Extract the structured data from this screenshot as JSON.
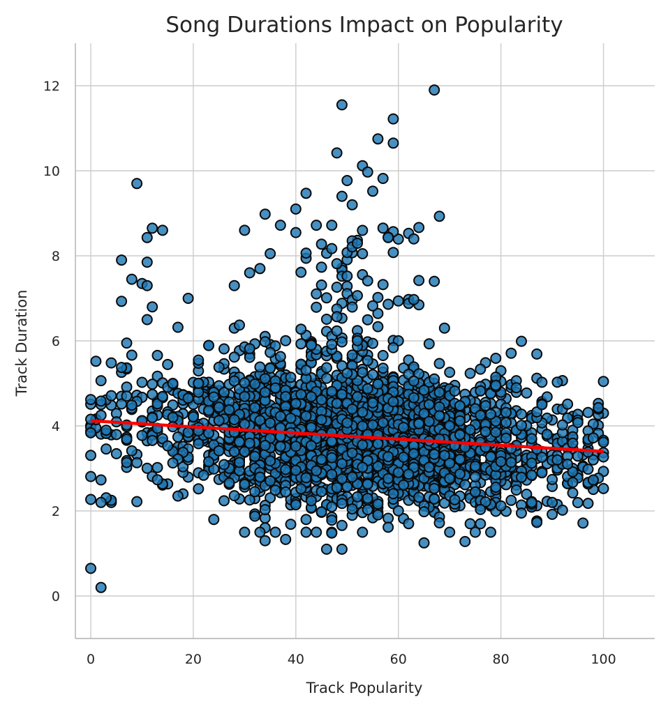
{
  "chart_data": {
    "type": "scatter",
    "title": "Song Durations Impact on Popularity",
    "xlabel": "Track Popularity",
    "ylabel": "Track Duration",
    "xlim": [
      -3,
      110
    ],
    "ylim": [
      -1,
      13
    ],
    "xticks": [
      0,
      20,
      40,
      60,
      80,
      100
    ],
    "yticks": [
      0,
      2,
      4,
      6,
      8,
      10,
      12
    ],
    "grid": true,
    "colors": {
      "points": "#1f77b4",
      "point_edge": "#0a0a0a",
      "fit_line": "#ff0000",
      "grid": "#cccccc"
    },
    "fit_line": {
      "x": [
        0,
        100
      ],
      "y": [
        4.12,
        3.4
      ]
    },
    "outliers": [
      [
        0,
        0.65
      ],
      [
        2,
        0.2
      ],
      [
        9,
        9.7
      ],
      [
        67,
        11.9
      ],
      [
        49,
        11.55
      ],
      [
        59,
        11.22
      ],
      [
        56,
        10.75
      ],
      [
        59,
        10.65
      ],
      [
        48,
        10.42
      ],
      [
        53,
        10.12
      ],
      [
        54,
        9.97
      ],
      [
        57,
        9.82
      ],
      [
        50,
        9.77
      ],
      [
        55,
        9.52
      ],
      [
        49,
        9.4
      ],
      [
        51,
        9.2
      ],
      [
        42,
        9.47
      ],
      [
        40,
        9.1
      ],
      [
        34,
        8.98
      ],
      [
        68,
        8.93
      ],
      [
        12,
        8.65
      ],
      [
        14,
        8.6
      ],
      [
        30,
        8.6
      ],
      [
        11,
        8.43
      ],
      [
        58,
        8.43
      ],
      [
        6,
        7.9
      ],
      [
        11,
        7.85
      ],
      [
        35,
        8.05
      ],
      [
        37,
        8.72
      ],
      [
        44,
        8.72
      ],
      [
        47,
        8.72
      ],
      [
        8,
        7.45
      ],
      [
        10,
        7.35
      ],
      [
        11,
        7.3
      ],
      [
        67,
        7.4
      ],
      [
        28,
        7.3
      ],
      [
        31,
        7.6
      ],
      [
        33,
        7.7
      ],
      [
        6,
        6.93
      ],
      [
        12,
        6.8
      ],
      [
        19,
        7.0
      ],
      [
        17,
        6.32
      ],
      [
        63,
        6.97
      ],
      [
        29,
        6.37
      ],
      [
        11,
        6.5
      ],
      [
        34,
        1.3
      ],
      [
        38,
        1.33
      ],
      [
        46,
        1.1
      ],
      [
        49,
        1.1
      ],
      [
        65,
        1.25
      ],
      [
        73,
        1.28
      ],
      [
        24,
        1.8
      ],
      [
        53,
        1.5
      ],
      [
        47,
        1.48
      ],
      [
        1,
        5.52
      ],
      [
        7,
        5.95
      ],
      [
        16,
        5.0
      ],
      [
        19,
        4.65
      ],
      [
        21,
        5.0
      ],
      [
        25,
        5.38
      ],
      [
        21,
        2.52
      ],
      [
        26,
        2.24
      ],
      [
        17,
        2.35
      ],
      [
        3,
        2.31
      ],
      [
        9,
        2.22
      ],
      [
        2,
        2.2
      ],
      [
        0,
        2.27
      ],
      [
        62,
        1.7
      ],
      [
        68,
        1.72
      ],
      [
        42,
        1.8
      ],
      [
        97,
        2.67
      ],
      [
        98,
        2.73
      ],
      [
        100,
        3.27
      ],
      [
        95,
        4.08
      ],
      [
        91,
        5.03
      ],
      [
        87,
        5.69
      ],
      [
        84,
        5.99
      ],
      [
        82,
        5.71
      ],
      [
        79,
        5.59
      ],
      [
        90,
        2.2
      ],
      [
        86,
        2.2
      ],
      [
        80,
        2.12
      ],
      [
        88,
        4.5
      ],
      [
        93,
        3.1
      ]
    ]
  }
}
